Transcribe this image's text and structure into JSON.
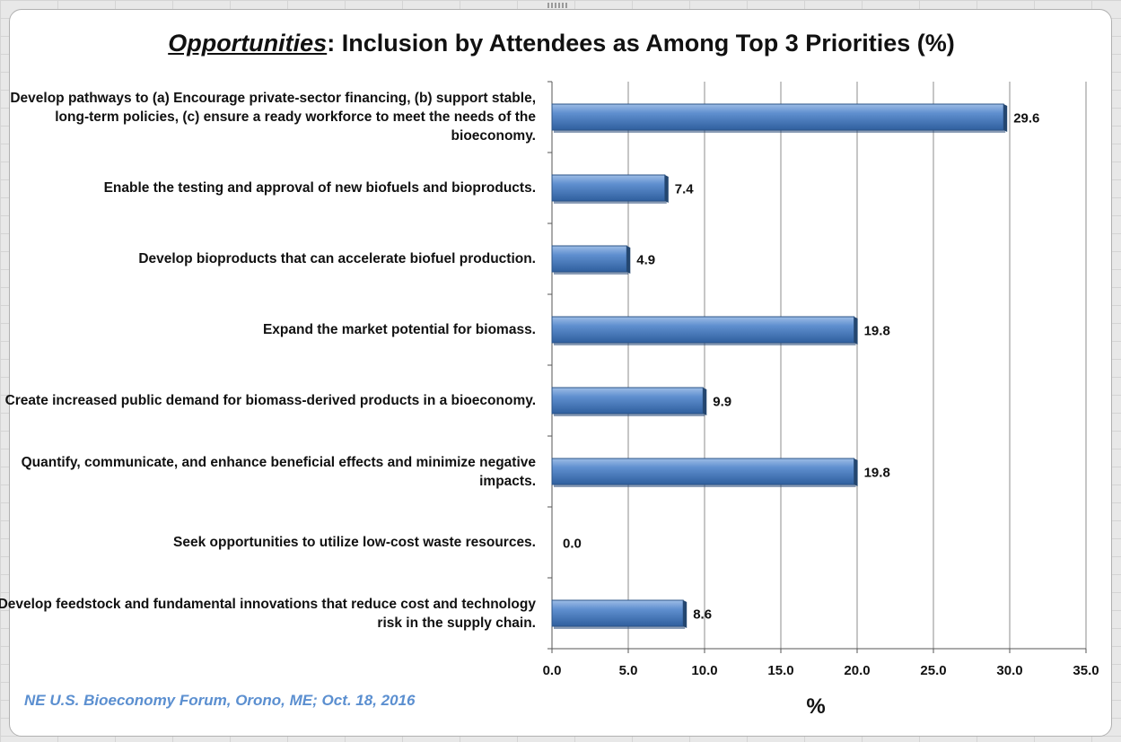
{
  "chart_data": {
    "type": "bar",
    "orientation": "horizontal",
    "title_emphasis": "Opportunities",
    "title_rest": ": Inclusion by Attendees as Among Top 3 Priorities (%)",
    "categories": [
      "Develop pathways to (a) Encourage private-sector financing, (b) support stable, long-term policies, (c) ensure a ready workforce to meet the needs of the bioeconomy.",
      "Enable the testing and approval of new biofuels and bioproducts.",
      "Develop bioproducts that can accelerate biofuel production.",
      "Expand the market potential for biomass.",
      "Create increased public demand for biomass-derived products in a bioeconomy.",
      "Quantify, communicate, and enhance beneficial effects and minimize negative impacts.",
      "Seek opportunities to utilize low-cost waste resources.",
      "Develop feedstock and fundamental innovations that reduce cost and technology risk in the supply chain."
    ],
    "values": [
      29.6,
      7.4,
      4.9,
      19.8,
      9.9,
      19.8,
      0.0,
      8.6
    ],
    "data_labels": [
      "29.6",
      "7.4",
      "4.9",
      "19.8",
      "9.9",
      "19.8",
      "0.0",
      "8.6"
    ],
    "xlabel": "%",
    "xlim": [
      0,
      35
    ],
    "x_ticks": [
      "0.0",
      "5.0",
      "10.0",
      "15.0",
      "20.0",
      "25.0",
      "30.0",
      "35.0"
    ],
    "grid": true,
    "bar_color": "#4f81bd",
    "footer": "NE U.S. Bioeconomy Forum, Orono, ME; Oct. 18, 2016",
    "footer_color": "#5b8fd0"
  }
}
